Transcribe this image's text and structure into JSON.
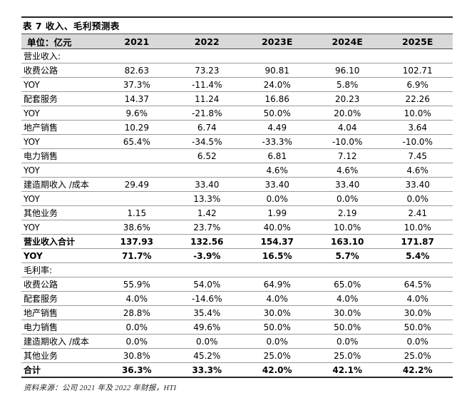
{
  "table": {
    "title": "表 7 收入、毛利预测表",
    "unit_label": "单位：亿元",
    "years": [
      "2021",
      "2022",
      "2023E",
      "2024E",
      "2025E"
    ],
    "rows": [
      {
        "type": "section",
        "label": "营业收入:",
        "values": [
          "",
          "",
          "",
          "",
          ""
        ]
      },
      {
        "type": "data",
        "label": "收费公路",
        "values": [
          "82.63",
          "73.23",
          "90.81",
          "96.10",
          "102.71"
        ]
      },
      {
        "type": "data",
        "label": "YOY",
        "values": [
          "37.3%",
          "-11.4%",
          "24.0%",
          "5.8%",
          "6.9%"
        ]
      },
      {
        "type": "data",
        "label": "配套服务",
        "values": [
          "14.37",
          "11.24",
          "16.86",
          "20.23",
          "22.26"
        ]
      },
      {
        "type": "data",
        "label": "YOY",
        "values": [
          "9.6%",
          "-21.8%",
          "50.0%",
          "20.0%",
          "10.0%"
        ]
      },
      {
        "type": "data",
        "label": "地产销售",
        "values": [
          "10.29",
          "6.74",
          "4.49",
          "4.04",
          "3.64"
        ]
      },
      {
        "type": "data",
        "label": "YOY",
        "values": [
          "65.4%",
          "-34.5%",
          "-33.3%",
          "-10.0%",
          "-10.0%"
        ]
      },
      {
        "type": "data",
        "label": "电力销售",
        "values": [
          "",
          "6.52",
          "6.81",
          "7.12",
          "7.45"
        ]
      },
      {
        "type": "data",
        "label": "YOY",
        "values": [
          "",
          "",
          "4.6%",
          "4.6%",
          "4.6%"
        ]
      },
      {
        "type": "data",
        "label": "建造期收入 /成本",
        "values": [
          "29.49",
          "33.40",
          "33.40",
          "33.40",
          "33.40"
        ]
      },
      {
        "type": "data",
        "label": "YOY",
        "values": [
          "",
          "13.3%",
          "0.0%",
          "0.0%",
          "0.0%"
        ]
      },
      {
        "type": "data",
        "label": "其他业务",
        "values": [
          "1.15",
          "1.42",
          "1.99",
          "2.19",
          "2.41"
        ]
      },
      {
        "type": "data",
        "label": "YOY",
        "values": [
          "38.6%",
          "23.7%",
          "40.0%",
          "10.0%",
          "10.0%"
        ]
      },
      {
        "type": "total",
        "label": "营业收入合计",
        "values": [
          "137.93",
          "132.56",
          "154.37",
          "163.10",
          "171.87"
        ]
      },
      {
        "type": "total",
        "label": "YOY",
        "values": [
          "71.7%",
          "-3.9%",
          "16.5%",
          "5.7%",
          "5.4%"
        ]
      },
      {
        "type": "section",
        "label": "毛利率:",
        "values": [
          "",
          "",
          "",
          "",
          ""
        ]
      },
      {
        "type": "data",
        "label": "收费公路",
        "values": [
          "55.9%",
          "54.0%",
          "64.9%",
          "65.0%",
          "64.5%"
        ]
      },
      {
        "type": "data",
        "label": "配套服务",
        "values": [
          "4.0%",
          "-14.6%",
          "4.0%",
          "4.0%",
          "4.0%"
        ]
      },
      {
        "type": "data",
        "label": "地产销售",
        "values": [
          "28.8%",
          "35.4%",
          "30.0%",
          "30.0%",
          "30.0%"
        ]
      },
      {
        "type": "data",
        "label": "电力销售",
        "values": [
          "0.0%",
          "49.6%",
          "50.0%",
          "50.0%",
          "50.0%"
        ]
      },
      {
        "type": "data",
        "label": "建造期收入 /成本",
        "values": [
          "0.0%",
          "0.0%",
          "0.0%",
          "0.0%",
          "0.0%"
        ]
      },
      {
        "type": "data",
        "label": "其他业务",
        "values": [
          "30.8%",
          "45.2%",
          "25.0%",
          "25.0%",
          "25.0%"
        ]
      },
      {
        "type": "total",
        "label": "合计",
        "values": [
          "36.3%",
          "33.3%",
          "42.0%",
          "42.1%",
          "42.2%"
        ]
      }
    ]
  },
  "footer": {
    "source": "资料来源：公司 2021 年及 2022 年财报，HTI"
  },
  "colors": {
    "header_bg": "#d9d9d9",
    "border_dark": "#262626",
    "row_line": "#9c9c9c",
    "text": "#000000"
  }
}
